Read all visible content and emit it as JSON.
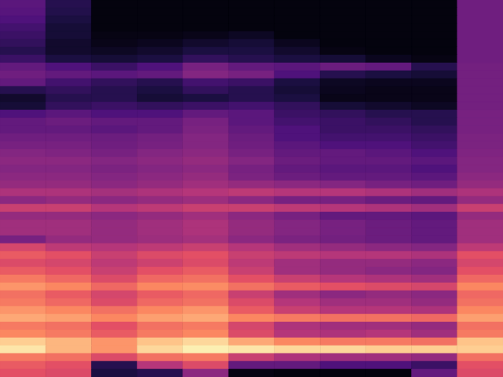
{
  "chart_data": {
    "type": "heatmap",
    "xlim": [
      0,
      11
    ],
    "ylim": [
      0,
      48
    ],
    "tick_labels": false,
    "color": "magma",
    "color_range": [
      0,
      1
    ],
    "cells": [
      [
        0.28,
        0.15,
        0.02,
        0.02,
        0.02,
        0.02,
        0.02,
        0.02,
        0.02,
        0.02,
        0.33
      ],
      [
        0.27,
        0.14,
        0.02,
        0.02,
        0.02,
        0.02,
        0.02,
        0.02,
        0.02,
        0.02,
        0.33
      ],
      [
        0.25,
        0.12,
        0.02,
        0.02,
        0.02,
        0.02,
        0.02,
        0.02,
        0.02,
        0.02,
        0.33
      ],
      [
        0.22,
        0.1,
        0.02,
        0.02,
        0.02,
        0.02,
        0.02,
        0.02,
        0.02,
        0.02,
        0.33
      ],
      [
        0.2,
        0.1,
        0.03,
        0.03,
        0.04,
        0.06,
        0.02,
        0.02,
        0.02,
        0.02,
        0.33
      ],
      [
        0.18,
        0.08,
        0.04,
        0.05,
        0.08,
        0.1,
        0.05,
        0.02,
        0.02,
        0.02,
        0.33
      ],
      [
        0.15,
        0.08,
        0.06,
        0.08,
        0.12,
        0.12,
        0.08,
        0.03,
        0.02,
        0.02,
        0.33
      ],
      [
        0.2,
        0.12,
        0.1,
        0.12,
        0.18,
        0.15,
        0.12,
        0.1,
        0.05,
        0.03,
        0.33
      ],
      [
        0.3,
        0.25,
        0.2,
        0.25,
        0.35,
        0.3,
        0.28,
        0.32,
        0.3,
        0.15,
        0.34
      ],
      [
        0.33,
        0.3,
        0.28,
        0.3,
        0.38,
        0.35,
        0.25,
        0.15,
        0.12,
        0.1,
        0.34
      ],
      [
        0.3,
        0.22,
        0.18,
        0.15,
        0.22,
        0.2,
        0.12,
        0.06,
        0.05,
        0.05,
        0.34
      ],
      [
        0.15,
        0.18,
        0.15,
        0.12,
        0.18,
        0.15,
        0.1,
        0.05,
        0.04,
        0.04,
        0.34
      ],
      [
        0.08,
        0.15,
        0.15,
        0.1,
        0.12,
        0.15,
        0.12,
        0.04,
        0.04,
        0.04,
        0.34
      ],
      [
        0.1,
        0.18,
        0.2,
        0.18,
        0.2,
        0.22,
        0.18,
        0.1,
        0.08,
        0.06,
        0.34
      ],
      [
        0.25,
        0.28,
        0.25,
        0.25,
        0.3,
        0.28,
        0.2,
        0.18,
        0.15,
        0.15,
        0.35
      ],
      [
        0.3,
        0.32,
        0.3,
        0.3,
        0.35,
        0.28,
        0.22,
        0.2,
        0.18,
        0.15,
        0.35
      ],
      [
        0.3,
        0.3,
        0.28,
        0.3,
        0.36,
        0.3,
        0.25,
        0.2,
        0.2,
        0.18,
        0.35
      ],
      [
        0.33,
        0.33,
        0.32,
        0.34,
        0.38,
        0.32,
        0.25,
        0.22,
        0.22,
        0.2,
        0.36
      ],
      [
        0.35,
        0.35,
        0.33,
        0.35,
        0.38,
        0.33,
        0.28,
        0.25,
        0.25,
        0.22,
        0.36
      ],
      [
        0.38,
        0.37,
        0.35,
        0.38,
        0.4,
        0.35,
        0.3,
        0.3,
        0.28,
        0.25,
        0.37
      ],
      [
        0.4,
        0.4,
        0.38,
        0.4,
        0.42,
        0.38,
        0.32,
        0.3,
        0.3,
        0.28,
        0.38
      ],
      [
        0.38,
        0.38,
        0.36,
        0.38,
        0.4,
        0.35,
        0.3,
        0.28,
        0.28,
        0.25,
        0.38
      ],
      [
        0.4,
        0.4,
        0.38,
        0.4,
        0.42,
        0.36,
        0.32,
        0.3,
        0.3,
        0.28,
        0.4
      ],
      [
        0.42,
        0.42,
        0.4,
        0.42,
        0.45,
        0.42,
        0.4,
        0.38,
        0.35,
        0.33,
        0.42
      ],
      [
        0.48,
        0.48,
        0.46,
        0.48,
        0.5,
        0.52,
        0.5,
        0.5,
        0.48,
        0.45,
        0.48
      ],
      [
        0.4,
        0.42,
        0.4,
        0.42,
        0.44,
        0.4,
        0.35,
        0.35,
        0.32,
        0.3,
        0.42
      ],
      [
        0.55,
        0.55,
        0.5,
        0.52,
        0.55,
        0.55,
        0.52,
        0.5,
        0.48,
        0.45,
        0.55
      ],
      [
        0.42,
        0.42,
        0.4,
        0.42,
        0.45,
        0.4,
        0.35,
        0.3,
        0.3,
        0.28,
        0.42
      ],
      [
        0.45,
        0.45,
        0.42,
        0.45,
        0.48,
        0.42,
        0.38,
        0.35,
        0.32,
        0.3,
        0.45
      ],
      [
        0.45,
        0.45,
        0.42,
        0.45,
        0.48,
        0.42,
        0.38,
        0.35,
        0.32,
        0.3,
        0.45
      ],
      [
        0.35,
        0.42,
        0.42,
        0.44,
        0.46,
        0.4,
        0.36,
        0.34,
        0.32,
        0.3,
        0.45
      ],
      [
        0.58,
        0.52,
        0.5,
        0.52,
        0.55,
        0.5,
        0.45,
        0.42,
        0.4,
        0.38,
        0.52
      ],
      [
        0.65,
        0.62,
        0.55,
        0.6,
        0.62,
        0.55,
        0.52,
        0.5,
        0.5,
        0.48,
        0.62
      ],
      [
        0.6,
        0.58,
        0.52,
        0.56,
        0.6,
        0.52,
        0.45,
        0.42,
        0.42,
        0.4,
        0.58
      ],
      [
        0.65,
        0.62,
        0.55,
        0.62,
        0.65,
        0.55,
        0.45,
        0.42,
        0.4,
        0.38,
        0.62
      ],
      [
        0.72,
        0.68,
        0.6,
        0.68,
        0.7,
        0.62,
        0.55,
        0.5,
        0.48,
        0.45,
        0.68
      ],
      [
        0.78,
        0.75,
        0.68,
        0.75,
        0.76,
        0.7,
        0.65,
        0.62,
        0.6,
        0.58,
        0.75
      ],
      [
        0.7,
        0.65,
        0.58,
        0.65,
        0.68,
        0.55,
        0.45,
        0.4,
        0.42,
        0.4,
        0.68
      ],
      [
        0.72,
        0.68,
        0.6,
        0.68,
        0.7,
        0.6,
        0.5,
        0.45,
        0.45,
        0.42,
        0.7
      ],
      [
        0.78,
        0.75,
        0.7,
        0.75,
        0.78,
        0.65,
        0.55,
        0.5,
        0.5,
        0.48,
        0.75
      ],
      [
        0.82,
        0.8,
        0.75,
        0.8,
        0.82,
        0.75,
        0.72,
        0.7,
        0.7,
        0.68,
        0.8
      ],
      [
        0.72,
        0.7,
        0.62,
        0.7,
        0.72,
        0.58,
        0.48,
        0.45,
        0.45,
        0.42,
        0.7
      ],
      [
        0.75,
        0.72,
        0.65,
        0.72,
        0.75,
        0.6,
        0.5,
        0.48,
        0.5,
        0.45,
        0.72
      ],
      [
        0.9,
        0.85,
        0.78,
        0.88,
        0.92,
        0.82,
        0.75,
        0.72,
        0.72,
        0.7,
        0.88
      ],
      [
        0.95,
        0.85,
        0.78,
        0.92,
        0.97,
        0.95,
        0.92,
        0.92,
        0.9,
        0.9,
        0.9
      ],
      [
        0.72,
        0.7,
        0.6,
        0.7,
        0.72,
        0.55,
        0.48,
        0.45,
        0.45,
        0.42,
        0.7
      ],
      [
        0.65,
        0.62,
        0.15,
        0.5,
        0.6,
        0.3,
        0.3,
        0.25,
        0.25,
        0.2,
        0.62
      ],
      [
        0.62,
        0.6,
        0.12,
        0.15,
        0.4,
        0.03,
        0.02,
        0.02,
        0.02,
        0.3,
        0.6
      ]
    ]
  }
}
